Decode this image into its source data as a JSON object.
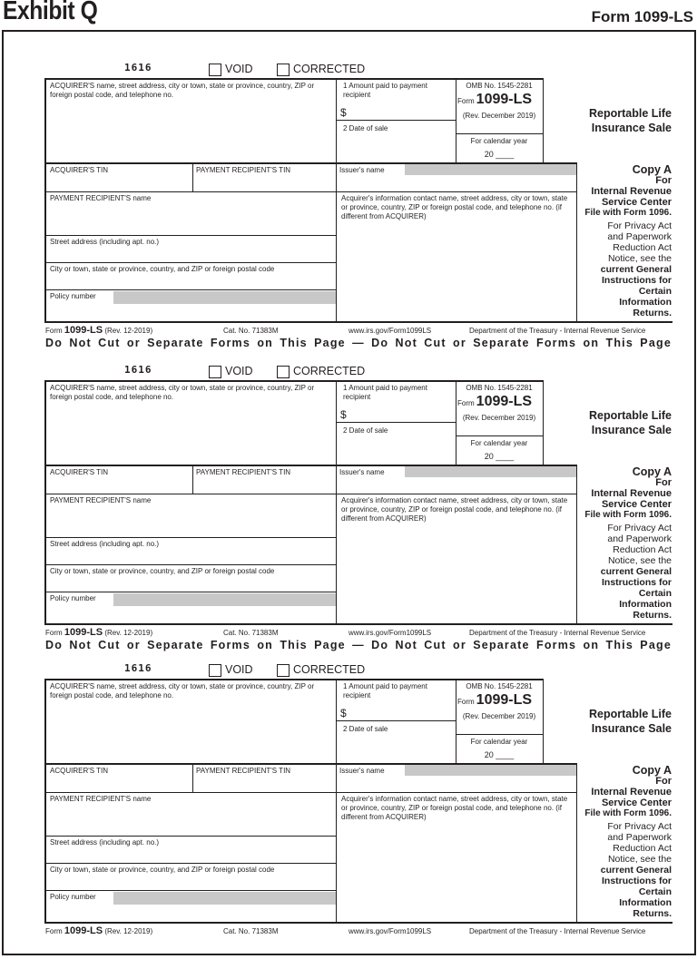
{
  "header": {
    "exhibit": "Exhibit Q",
    "form_title": "Form 1099-LS"
  },
  "form": {
    "code": "1616",
    "void_label": "VOID",
    "corrected_label": "CORRECTED",
    "acquirer_name_label": "ACQUIRER'S name, street address, city or town, state or province, country, ZIP or foreign postal code, and telephone no.",
    "box1_label": "1  Amount paid to payment recipient",
    "box1_currency": "$",
    "box2_label": "2  Date of sale",
    "omb": "OMB No. 1545-2281",
    "form_prefix": "Form",
    "form_number": "1099-LS",
    "rev": "(Rev. December 2019)",
    "calendar_label": "For calendar year",
    "calendar_year": "20 ____",
    "title": "Reportable Life Insurance Sale",
    "acquirer_tin_label": "ACQUIRER'S TIN",
    "recipient_tin_label": "PAYMENT RECIPIENT'S TIN",
    "issuer_name_label": "Issuer's name",
    "recipient_name_label": "PAYMENT RECIPIENT'S name",
    "street_label": "Street address (including apt. no.)",
    "city_label": "City or town, state or province, country, and ZIP or foreign postal code",
    "policy_label": "Policy number",
    "acquirer_contact_label": "Acquirer's information contact name, street address, city or town, state or province, country, ZIP or foreign postal code, and telephone no. (if different from ACQUIRER)",
    "copy": "Copy A",
    "copy_for": "For",
    "copy_irs": "Internal Revenue Service Center",
    "copy_file": "File with Form 1096.",
    "copy_privacy": "For Privacy Act and Paperwork Reduction Act Notice, see the",
    "copy_instructions": "current General Instructions for Certain Information Returns.",
    "footer_form": "Form",
    "footer_number": "1099-LS",
    "footer_rev": "(Rev. 12-2019)",
    "footer_cat": "Cat. No. 71383M",
    "footer_url": "www.irs.gov/Form1099LS",
    "footer_dept": "Department of the Treasury - Internal Revenue Service",
    "separator": "Do Not Cut or Separate Forms on This Page — Do Not Cut or Separate Forms on This Page"
  }
}
